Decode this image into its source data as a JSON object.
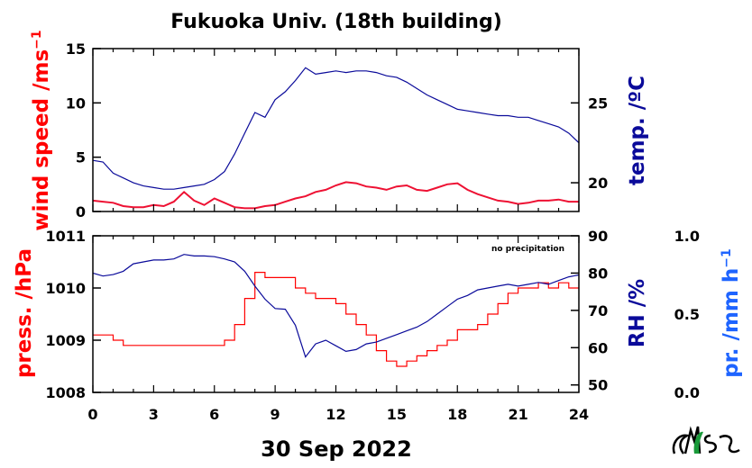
{
  "title": "Fukuoka Univ. (18th building)",
  "date_label": "30 Sep 2022",
  "logo_text": "FES",
  "colors": {
    "red": "#ff0000",
    "navy": "#0a0a9a",
    "blue": "#1e64ff",
    "pink": "#e0a0e0",
    "crimson": "#ee1133"
  },
  "chart_data": [
    {
      "type": "line",
      "panel": "top",
      "x_ticks": [
        "0",
        "3",
        "6",
        "9",
        "12",
        "15",
        "18",
        "21",
        "24"
      ],
      "xlim": [
        0,
        24
      ],
      "left_axis": {
        "label": "wind speed /ms",
        "label_sup": "−1",
        "ylim": [
          0,
          15
        ],
        "ticks": [
          "0",
          "5",
          "10",
          "15"
        ]
      },
      "right_axis": {
        "label": "temp. /ºC",
        "ylim": [
          18.2,
          28.4
        ],
        "ticks": [
          "20",
          "25"
        ]
      },
      "series": [
        {
          "axis": "right",
          "color": "#0a0a9a",
          "x": [
            0,
            0.5,
            1,
            1.5,
            2,
            2.5,
            3,
            3.5,
            4,
            4.5,
            5,
            5.5,
            6,
            6.5,
            7,
            7.5,
            8,
            8.5,
            9,
            9.5,
            10,
            10.5,
            11,
            11.5,
            12,
            12.5,
            13,
            13.5,
            14,
            14.5,
            15,
            15.5,
            16,
            16.5,
            17,
            17.5,
            18,
            18.5,
            19,
            19.5,
            20,
            20.5,
            21,
            21.5,
            22,
            22.5,
            23,
            23.5,
            24
          ],
          "y": [
            21.4,
            21.3,
            20.6,
            20.3,
            20.0,
            19.8,
            19.7,
            19.6,
            19.6,
            19.7,
            19.8,
            19.9,
            20.2,
            20.7,
            21.8,
            23.1,
            24.4,
            24.1,
            25.2,
            25.7,
            26.4,
            27.2,
            26.8,
            26.9,
            27.0,
            26.9,
            27.0,
            27.0,
            26.9,
            26.7,
            26.6,
            26.3,
            25.9,
            25.5,
            25.2,
            24.9,
            24.6,
            24.5,
            24.4,
            24.3,
            24.2,
            24.2,
            24.1,
            24.1,
            23.9,
            23.7,
            23.5,
            23.1,
            22.5
          ]
        },
        {
          "axis": "left",
          "color": "#ee1133",
          "x": [
            0,
            0.5,
            1,
            1.5,
            2,
            2.5,
            3,
            3.5,
            4,
            4.5,
            5,
            5.5,
            6,
            6.5,
            7,
            7.5,
            8,
            8.5,
            9,
            9.5,
            10,
            10.5,
            11,
            11.5,
            12,
            12.5,
            13,
            13.5,
            14,
            14.5,
            15,
            15.5,
            16,
            16.5,
            17,
            17.5,
            18,
            18.5,
            19,
            19.5,
            20,
            20.5,
            21,
            21.5,
            22,
            22.5,
            23,
            23.5,
            24
          ],
          "y": [
            1.0,
            0.9,
            0.8,
            0.5,
            0.4,
            0.4,
            0.6,
            0.5,
            0.9,
            1.8,
            1.0,
            0.6,
            1.2,
            0.8,
            0.4,
            0.3,
            0.3,
            0.5,
            0.6,
            0.9,
            1.2,
            1.4,
            1.8,
            2.0,
            2.4,
            2.7,
            2.6,
            2.3,
            2.2,
            2.0,
            2.3,
            2.4,
            2.0,
            1.9,
            2.2,
            2.5,
            2.6,
            2.0,
            1.6,
            1.3,
            1.0,
            0.9,
            0.7,
            0.8,
            1.0,
            1.0,
            1.1,
            0.9,
            0.9
          ]
        }
      ]
    },
    {
      "type": "line",
      "panel": "bottom",
      "note": "no precipitation",
      "x_ticks": [
        "0",
        "3",
        "6",
        "9",
        "12",
        "15",
        "18",
        "21",
        "24"
      ],
      "xlim": [
        0,
        24
      ],
      "left_axis": {
        "label": "press. /hPa",
        "ylim": [
          1008,
          1011
        ],
        "ticks": [
          "1008",
          "1009",
          "1010",
          "1011"
        ]
      },
      "right_axis": {
        "label": "RH /%",
        "ylim": [
          48,
          90
        ],
        "ticks": [
          "50",
          "60",
          "70",
          "80",
          "90"
        ]
      },
      "third_axis": {
        "label": "pr. /mm h",
        "label_sup": "−1",
        "ylim": [
          0,
          1
        ],
        "ticks": [
          "0.0",
          "0.5",
          "1.0"
        ]
      },
      "series": [
        {
          "axis": "left",
          "color": "#ff0000",
          "x": [
            0,
            0.5,
            1,
            1.5,
            2,
            2.5,
            3,
            3.5,
            4,
            4.5,
            5,
            5.5,
            6,
            6.5,
            7,
            7.5,
            8,
            8.5,
            9,
            9.5,
            10,
            10.5,
            11,
            11.5,
            12,
            12.5,
            13,
            13.5,
            14,
            14.5,
            15,
            15.5,
            16,
            16.5,
            17,
            17.5,
            18,
            18.5,
            19,
            19.5,
            20,
            20.5,
            21,
            21.5,
            22,
            22.5,
            23,
            23.5,
            24
          ],
          "y": [
            1009.1,
            1009.1,
            1009.0,
            1008.9,
            1008.9,
            1008.9,
            1008.9,
            1008.9,
            1008.9,
            1008.9,
            1008.9,
            1008.9,
            1008.9,
            1009.0,
            1009.3,
            1009.8,
            1010.3,
            1010.2,
            1010.2,
            1010.2,
            1010.0,
            1009.9,
            1009.8,
            1009.8,
            1009.7,
            1009.5,
            1009.3,
            1009.1,
            1008.8,
            1008.6,
            1008.5,
            1008.6,
            1008.7,
            1008.8,
            1008.9,
            1009.0,
            1009.2,
            1009.2,
            1009.3,
            1009.5,
            1009.7,
            1009.9,
            1010.0,
            1010.0,
            1010.1,
            1010.0,
            1010.1,
            1010.0,
            1010.0
          ]
        },
        {
          "axis": "right",
          "color": "#0a0a9a",
          "x": [
            0,
            0.5,
            1,
            1.5,
            2,
            2.5,
            3,
            3.5,
            4,
            4.5,
            5,
            5.5,
            6,
            6.5,
            7,
            7.5,
            8,
            8.5,
            9,
            9.5,
            10,
            10.5,
            11,
            11.5,
            12,
            12.5,
            13,
            13.5,
            14,
            14.5,
            15,
            15.5,
            16,
            16.5,
            17,
            17.5,
            18,
            18.5,
            19,
            19.5,
            20,
            20.5,
            21,
            21.5,
            22,
            22.5,
            23,
            23.5,
            24
          ],
          "y": [
            80.0,
            79.2,
            79.6,
            80.5,
            82.5,
            83.0,
            83.5,
            83.5,
            83.8,
            85.0,
            84.6,
            84.6,
            84.4,
            83.8,
            83.0,
            80.5,
            76.5,
            73.0,
            70.5,
            70.3,
            66.0,
            57.5,
            61.0,
            62.0,
            60.5,
            59.0,
            59.5,
            61.0,
            61.5,
            62.5,
            63.5,
            64.5,
            65.5,
            67.0,
            69.0,
            71.0,
            73.0,
            74.0,
            75.5,
            76.0,
            76.5,
            77.0,
            76.5,
            77.0,
            77.5,
            77.0,
            78.0,
            79.0,
            79.5
          ]
        }
      ]
    }
  ]
}
